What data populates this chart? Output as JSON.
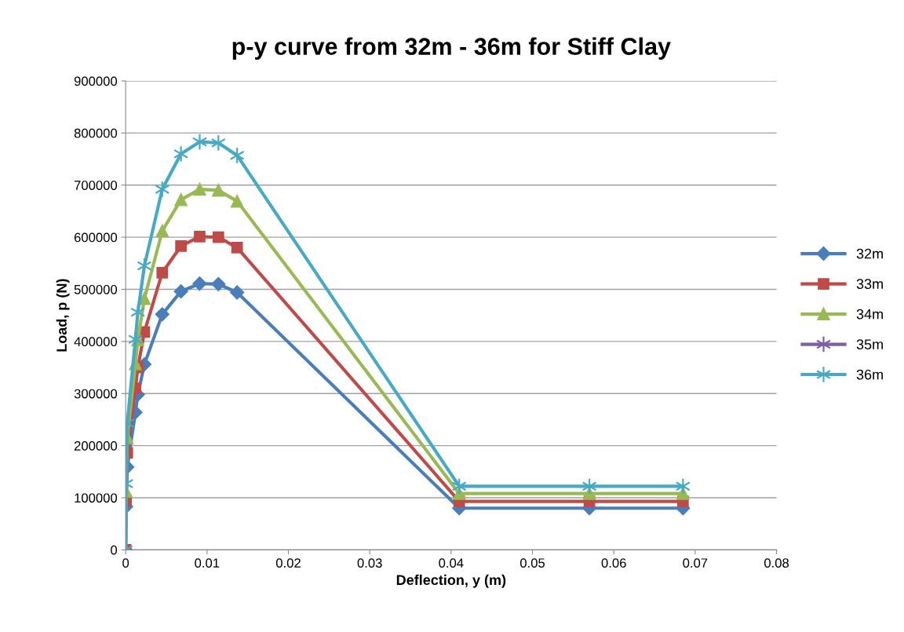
{
  "chart_data": {
    "type": "line",
    "title": "p-y curve from 32m - 36m for Stiff Clay",
    "xlabel": "Deflection, y (m)",
    "ylabel": "Load, p (N)",
    "x": [
      0,
      5e-05,
      0.0002,
      0.0012,
      0.0015,
      0.0023,
      0.0045,
      0.0068,
      0.0091,
      0.0114,
      0.0137,
      0.041,
      0.057,
      0.0685
    ],
    "series": [
      {
        "name": "32m",
        "color": "#4a7ebb",
        "marker": "diamond",
        "values": [
          0,
          83000,
          159000,
          264000,
          298000,
          356000,
          452000,
          496000,
          511000,
          510000,
          494000,
          80000,
          80000,
          80000
        ]
      },
      {
        "name": "33m",
        "color": "#be4b48",
        "marker": "square",
        "values": [
          0,
          95000,
          186000,
          310000,
          350000,
          418000,
          532000,
          583000,
          601000,
          600000,
          580000,
          93000,
          93000,
          93000
        ]
      },
      {
        "name": "34m",
        "color": "#98b954",
        "marker": "triangle",
        "values": [
          0,
          112000,
          215000,
          357000,
          403000,
          482000,
          612000,
          672000,
          692000,
          690000,
          669000,
          108000,
          108000,
          108000
        ]
      },
      {
        "name": "35m",
        "color": "#7d60a0",
        "marker": "cross",
        "values": [
          null,
          null,
          null,
          null,
          null,
          null,
          null,
          null,
          null,
          null,
          null,
          null,
          null,
          null
        ]
      },
      {
        "name": "36m",
        "color": "#46aac5",
        "marker": "cross",
        "values": [
          0,
          127000,
          243000,
          404000,
          456000,
          545000,
          692000,
          760000,
          783000,
          781000,
          757000,
          122000,
          122000,
          122000
        ]
      }
    ],
    "xlim": [
      0,
      0.08
    ],
    "xticks": [
      0,
      0.01,
      0.02,
      0.03,
      0.04,
      0.05,
      0.06,
      0.07,
      0.08
    ],
    "ylim": [
      0,
      900000
    ],
    "yticks": [
      0,
      100000,
      200000,
      300000,
      400000,
      500000,
      600000,
      700000,
      800000,
      900000
    ],
    "grid": "y",
    "legend": "right",
    "line_style": "solid"
  }
}
